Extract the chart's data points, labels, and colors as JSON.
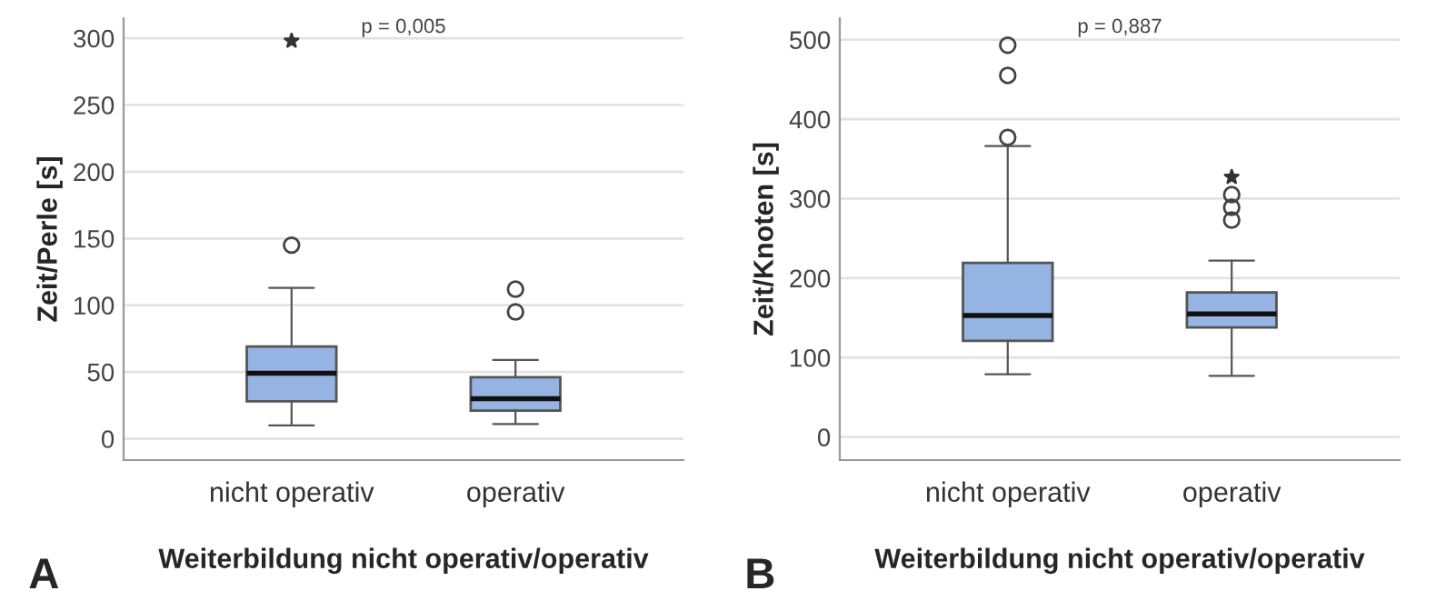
{
  "chart_data": [
    {
      "type": "box",
      "title": "A",
      "xlabel": "Weiterbildung nicht operativ/operativ",
      "ylabel": "Zeit/Perle [s]",
      "annotations": [
        "p = 0,005"
      ],
      "categories": [
        "nicht operativ",
        "operativ"
      ],
      "color": "#95b3e3",
      "grid": "y",
      "ylim": [
        -16,
        315
      ],
      "yticks": [
        0,
        50,
        100,
        150,
        200,
        250,
        300
      ],
      "boxes": [
        {
          "low": 10,
          "q1": 28,
          "median": 49,
          "q3": 69,
          "high": 113,
          "outliers": [
            145
          ]
        },
        {
          "low": 11,
          "q1": 21,
          "median": 30,
          "q3": 46,
          "high": 59,
          "outliers": [
            95,
            112
          ]
        }
      ],
      "series": [
        {
          "type": "scatter",
          "marker": "star",
          "color": "#333333",
          "x": [
            "nicht operativ"
          ],
          "values": [
            298
          ]
        }
      ]
    },
    {
      "type": "box",
      "title": "B",
      "xlabel": "Weiterbildung nicht operativ/operativ",
      "ylabel": "Zeit/Knoten [s]",
      "annotations": [
        "p = 0,887"
      ],
      "categories": [
        "nicht operativ",
        "operativ"
      ],
      "color": "#95b3e3",
      "grid": "y",
      "ylim": [
        -29,
        527
      ],
      "yticks": [
        0,
        100,
        200,
        300,
        400,
        500
      ],
      "boxes": [
        {
          "low": 79,
          "q1": 121,
          "median": 153,
          "q3": 219,
          "high": 366,
          "outliers": [
            377,
            455,
            493
          ]
        },
        {
          "low": 77,
          "q1": 138,
          "median": 155,
          "q3": 182,
          "high": 222,
          "outliers": [
            273,
            289,
            305
          ]
        }
      ],
      "series": [
        {
          "type": "scatter",
          "marker": "star",
          "color": "#333333",
          "x": [
            "operativ"
          ],
          "values": [
            327
          ]
        }
      ]
    }
  ]
}
